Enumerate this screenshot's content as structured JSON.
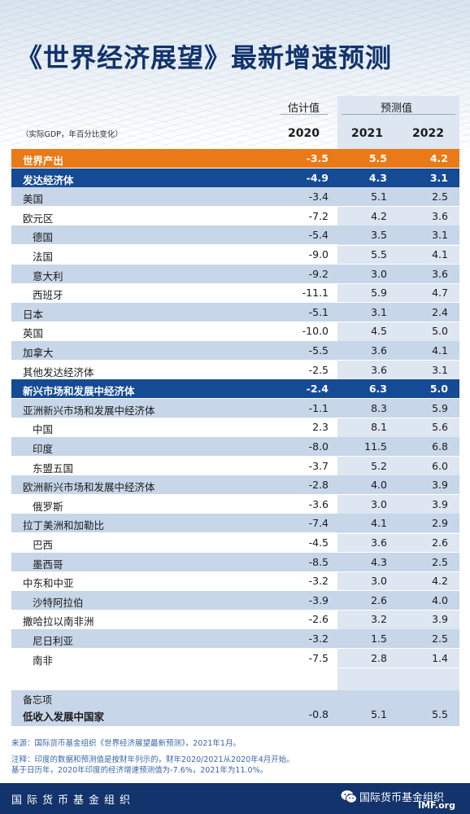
{
  "title": "《世界经济展望》最新增速预测",
  "header": {
    "estimate_label": "估计值",
    "projection_label": "预测值",
    "note": "（实际GDP，年百分比变化）",
    "years": [
      "2020",
      "2021",
      "2022"
    ]
  },
  "rows": [
    {
      "label": "世界产出",
      "v": [
        "-3.5",
        "5.5",
        "4.2"
      ],
      "style": "orange",
      "sub": false
    },
    {
      "label": "发达经济体",
      "v": [
        "-4.9",
        "4.3",
        "3.1"
      ],
      "style": "navy",
      "sub": false
    },
    {
      "label": "美国",
      "v": [
        "-3.4",
        "5.1",
        "2.5"
      ],
      "style": "shaded",
      "sub": false
    },
    {
      "label": "欧元区",
      "v": [
        "-7.2",
        "4.2",
        "3.6"
      ],
      "style": "plain",
      "sub": false
    },
    {
      "label": "德国",
      "v": [
        "-5.4",
        "3.5",
        "3.1"
      ],
      "style": "shaded",
      "sub": true
    },
    {
      "label": "法国",
      "v": [
        "-9.0",
        "5.5",
        "4.1"
      ],
      "style": "plain",
      "sub": true
    },
    {
      "label": "意大利",
      "v": [
        "-9.2",
        "3.0",
        "3.6"
      ],
      "style": "shaded",
      "sub": true
    },
    {
      "label": "西班牙",
      "v": [
        "-11.1",
        "5.9",
        "4.7"
      ],
      "style": "plain",
      "sub": true
    },
    {
      "label": "日本",
      "v": [
        "-5.1",
        "3.1",
        "2.4"
      ],
      "style": "shaded",
      "sub": false
    },
    {
      "label": "英国",
      "v": [
        "-10.0",
        "4.5",
        "5.0"
      ],
      "style": "plain",
      "sub": false
    },
    {
      "label": "加拿大",
      "v": [
        "-5.5",
        "3.6",
        "4.1"
      ],
      "style": "shaded",
      "sub": false
    },
    {
      "label": "其他发达经济体",
      "v": [
        "-2.5",
        "3.6",
        "3.1"
      ],
      "style": "plain",
      "sub": false
    },
    {
      "label": "新兴市场和发展中经济体",
      "v": [
        "-2.4",
        "6.3",
        "5.0"
      ],
      "style": "navy",
      "sub": false
    },
    {
      "label": "亚洲新兴市场和发展中经济体",
      "v": [
        "-1.1",
        "8.3",
        "5.9"
      ],
      "style": "shaded",
      "sub": false
    },
    {
      "label": "中国",
      "v": [
        "2.3",
        "8.1",
        "5.6"
      ],
      "style": "plain",
      "sub": true
    },
    {
      "label": "印度",
      "v": [
        "-8.0",
        "11.5",
        "6.8"
      ],
      "style": "shaded",
      "sub": true
    },
    {
      "label": "东盟五国",
      "v": [
        "-3.7",
        "5.2",
        "6.0"
      ],
      "style": "plain",
      "sub": true
    },
    {
      "label": "欧洲新兴市场和发展中经济体",
      "v": [
        "-2.8",
        "4.0",
        "3.9"
      ],
      "style": "shaded",
      "sub": false
    },
    {
      "label": "俄罗斯",
      "v": [
        "-3.6",
        "3.0",
        "3.9"
      ],
      "style": "plain",
      "sub": true
    },
    {
      "label": "拉丁美洲和加勒比",
      "v": [
        "-7.4",
        "4.1",
        "2.9"
      ],
      "style": "shaded",
      "sub": false
    },
    {
      "label": "巴西",
      "v": [
        "-4.5",
        "3.6",
        "2.6"
      ],
      "style": "plain",
      "sub": true
    },
    {
      "label": "墨西哥",
      "v": [
        "-8.5",
        "4.3",
        "2.5"
      ],
      "style": "shaded",
      "sub": true
    },
    {
      "label": "中东和中亚",
      "v": [
        "-3.2",
        "3.0",
        "4.2"
      ],
      "style": "plain",
      "sub": false
    },
    {
      "label": "沙特阿拉伯",
      "v": [
        "-3.9",
        "2.6",
        "4.0"
      ],
      "style": "shaded",
      "sub": true
    },
    {
      "label": "撒哈拉以南非洲",
      "v": [
        "-2.6",
        "3.2",
        "3.9"
      ],
      "style": "plain",
      "sub": false
    },
    {
      "label": "尼日利亚",
      "v": [
        "-3.2",
        "1.5",
        "2.5"
      ],
      "style": "shaded",
      "sub": true
    },
    {
      "label": "南非",
      "v": [
        "-7.5",
        "2.8",
        "1.4"
      ],
      "style": "plain",
      "sub": true
    }
  ],
  "memo": {
    "title": "备忘项",
    "label": "低收入发展中国家",
    "v": [
      "-0.8",
      "5.1",
      "5.5"
    ]
  },
  "footnotes": {
    "source": "来源：国际货币基金组织《世界经济展望最新预测》，2021年1月。",
    "note1": "注释：印度的数据和预测值是按财年列示的，财年2020/2021从2020年4月开始。",
    "note2": "基于日历年，2020年印度的经济增速预测值为-7.6%，2021年为11.0%。"
  },
  "footer": {
    "org_left": "国际货币基金组织",
    "org_right": "国际货币基金组织",
    "imf": "IMF.org",
    "icon": "wechat-icon"
  },
  "colors": {
    "title": "#12336b",
    "orange_row": "#ea7a17",
    "navy_row": "#154b94",
    "shaded_row": "#c7d6e8",
    "projection_band": "#dde6f1",
    "footer_bar": "#12336b"
  }
}
